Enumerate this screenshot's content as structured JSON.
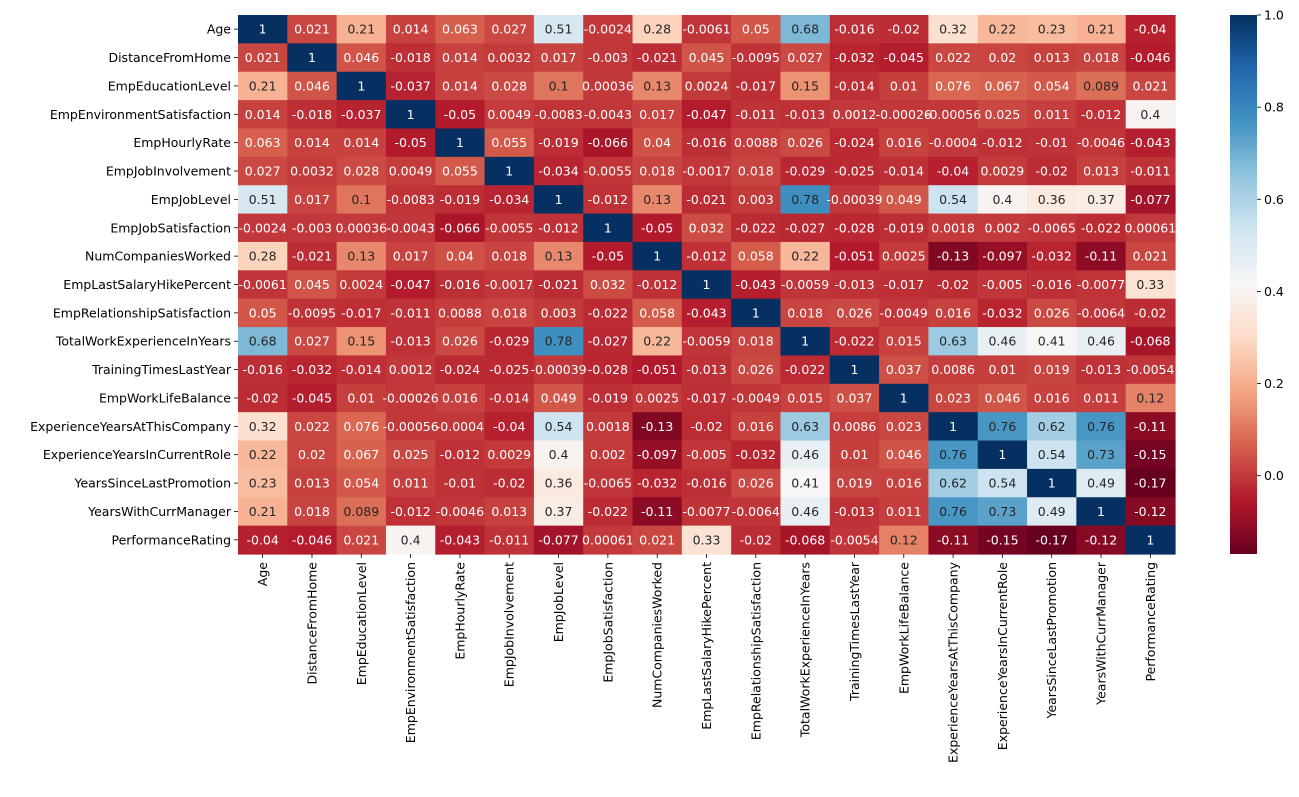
{
  "chart_data": {
    "type": "heatmap",
    "title": "",
    "xlabel": "",
    "ylabel": "",
    "labels": [
      "Age",
      "DistanceFromHome",
      "EmpEducationLevel",
      "EmpEnvironmentSatisfaction",
      "EmpHourlyRate",
      "EmpJobInvolvement",
      "EmpJobLevel",
      "EmpJobSatisfaction",
      "NumCompaniesWorked",
      "EmpLastSalaryHikePercent",
      "EmpRelationshipSatisfaction",
      "TotalWorkExperienceInYears",
      "TrainingTimesLastYear",
      "EmpWorkLifeBalance",
      "ExperienceYearsAtThisCompany",
      "ExperienceYearsInCurrentRole",
      "YearsSinceLastPromotion",
      "YearsWithCurrManager",
      "PerformanceRating"
    ],
    "values": [
      [
        1,
        0.021,
        0.21,
        0.014,
        0.063,
        0.027,
        0.51,
        -0.0024,
        0.28,
        -0.0061,
        0.05,
        0.68,
        -0.016,
        -0.02,
        0.32,
        0.22,
        0.23,
        0.21,
        -0.04
      ],
      [
        0.021,
        1,
        0.046,
        -0.018,
        0.014,
        0.0032,
        0.017,
        -0.003,
        -0.021,
        0.045,
        -0.0095,
        0.027,
        -0.032,
        -0.045,
        0.022,
        0.02,
        0.013,
        0.018,
        -0.046
      ],
      [
        0.21,
        0.046,
        1,
        -0.037,
        0.014,
        0.028,
        0.1,
        0.00036,
        0.13,
        0.0024,
        -0.017,
        0.15,
        -0.014,
        0.01,
        0.076,
        0.067,
        0.054,
        0.089,
        0.021
      ],
      [
        0.014,
        -0.018,
        -0.037,
        1,
        -0.05,
        0.0049,
        -0.0083,
        -0.0043,
        0.017,
        -0.047,
        -0.011,
        -0.013,
        0.0012,
        -0.00026,
        -0.00056,
        0.025,
        0.011,
        -0.012,
        0.4
      ],
      [
        0.063,
        0.014,
        0.014,
        -0.05,
        1,
        0.055,
        -0.019,
        -0.066,
        0.04,
        -0.016,
        0.0088,
        0.026,
        -0.024,
        0.016,
        -0.0004,
        -0.012,
        -0.01,
        -0.0046,
        -0.043
      ],
      [
        0.027,
        0.0032,
        0.028,
        0.0049,
        0.055,
        1,
        -0.034,
        -0.0055,
        0.018,
        -0.0017,
        0.018,
        -0.029,
        -0.025,
        -0.014,
        -0.04,
        0.0029,
        -0.02,
        0.013,
        -0.011
      ],
      [
        0.51,
        0.017,
        0.1,
        -0.0083,
        -0.019,
        -0.034,
        1,
        -0.012,
        0.13,
        -0.021,
        0.003,
        0.78,
        -0.00039,
        0.049,
        0.54,
        0.4,
        0.36,
        0.37,
        -0.077
      ],
      [
        -0.0024,
        -0.003,
        0.00036,
        -0.0043,
        -0.066,
        -0.0055,
        -0.012,
        1,
        -0.05,
        0.032,
        -0.022,
        -0.027,
        -0.028,
        -0.019,
        0.0018,
        0.002,
        -0.0065,
        -0.022,
        0.00061
      ],
      [
        0.28,
        -0.021,
        0.13,
        0.017,
        0.04,
        0.018,
        0.13,
        -0.05,
        1,
        -0.012,
        0.058,
        0.22,
        -0.051,
        0.0025,
        -0.13,
        -0.097,
        -0.032,
        -0.11,
        0.021
      ],
      [
        -0.0061,
        0.045,
        0.0024,
        -0.047,
        -0.016,
        -0.0017,
        -0.021,
        0.032,
        -0.012,
        1,
        -0.043,
        -0.0059,
        -0.013,
        -0.017,
        -0.02,
        -0.005,
        -0.016,
        -0.0077,
        0.33
      ],
      [
        0.05,
        -0.0095,
        -0.017,
        -0.011,
        0.0088,
        0.018,
        0.003,
        -0.022,
        0.058,
        -0.043,
        1,
        0.018,
        0.026,
        -0.0049,
        0.016,
        -0.032,
        0.026,
        -0.0064,
        -0.02
      ],
      [
        0.68,
        0.027,
        0.15,
        -0.013,
        0.026,
        -0.029,
        0.78,
        -0.027,
        0.22,
        -0.0059,
        0.018,
        1,
        -0.022,
        0.015,
        0.63,
        0.46,
        0.41,
        0.46,
        -0.068
      ],
      [
        -0.016,
        -0.032,
        -0.014,
        0.0012,
        -0.024,
        -0.025,
        -0.00039,
        -0.028,
        -0.051,
        -0.013,
        0.026,
        -0.022,
        1,
        0.037,
        0.0086,
        0.01,
        0.019,
        -0.013,
        -0.0054
      ],
      [
        -0.02,
        -0.045,
        0.01,
        -0.00026,
        0.016,
        -0.014,
        0.049,
        -0.019,
        0.0025,
        -0.017,
        -0.0049,
        0.015,
        0.037,
        1,
        0.023,
        0.046,
        0.016,
        0.011,
        0.12
      ],
      [
        0.32,
        0.022,
        0.076,
        -0.00056,
        -0.0004,
        -0.04,
        0.54,
        0.0018,
        -0.13,
        -0.02,
        0.016,
        0.63,
        0.0086,
        0.023,
        1,
        0.76,
        0.62,
        0.76,
        -0.11
      ],
      [
        0.22,
        0.02,
        0.067,
        0.025,
        -0.012,
        0.0029,
        0.4,
        0.002,
        -0.097,
        -0.005,
        -0.032,
        0.46,
        0.01,
        0.046,
        0.76,
        1,
        0.54,
        0.73,
        -0.15
      ],
      [
        0.23,
        0.013,
        0.054,
        0.011,
        -0.01,
        -0.02,
        0.36,
        -0.0065,
        -0.032,
        -0.016,
        0.026,
        0.41,
        0.019,
        0.016,
        0.62,
        0.54,
        1,
        0.49,
        -0.17
      ],
      [
        0.21,
        0.018,
        0.089,
        -0.012,
        -0.0046,
        0.013,
        0.37,
        -0.022,
        -0.11,
        -0.0077,
        -0.0064,
        0.46,
        -0.013,
        0.011,
        0.76,
        0.73,
        0.49,
        1,
        -0.12
      ],
      [
        -0.04,
        -0.046,
        0.021,
        0.4,
        -0.043,
        -0.011,
        -0.077,
        0.00061,
        0.021,
        0.33,
        -0.02,
        -0.068,
        -0.0054,
        0.12,
        -0.11,
        -0.15,
        -0.17,
        -0.12,
        1
      ]
    ],
    "colormap": "RdBu",
    "vmin": -0.17,
    "vmax": 1,
    "colorbar": {
      "ticks": [
        0.0,
        0.2,
        0.4,
        0.6,
        0.8,
        1.0
      ],
      "tick_labels": [
        "0.0",
        "0.2",
        "0.4",
        "0.6",
        "0.8",
        "1.0"
      ]
    },
    "annotations": true,
    "legend": "colorbar-right"
  },
  "colors": {
    "text_dark": "#262626",
    "text_light": "#ffffff"
  }
}
